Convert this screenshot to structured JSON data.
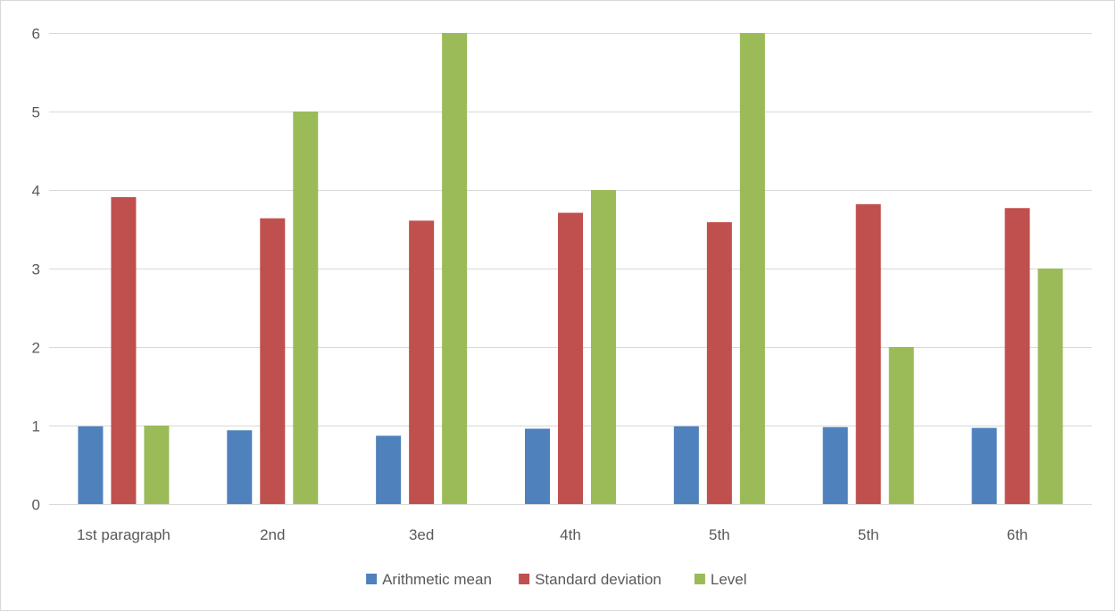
{
  "chart_data": {
    "type": "bar",
    "title": "",
    "xlabel": "",
    "ylabel": "",
    "categories": [
      "1st  paragraph",
      "2nd",
      "3ed",
      "4th",
      "5th",
      "5th",
      "6th"
    ],
    "series": [
      {
        "name": "Arithmetic mean",
        "color": "#4f81bd",
        "values": [
          0.99,
          0.94,
          0.87,
          0.96,
          0.99,
          0.98,
          0.97
        ]
      },
      {
        "name": "Standard deviation",
        "color": "#c0504d",
        "values": [
          3.91,
          3.64,
          3.61,
          3.71,
          3.59,
          3.82,
          3.77
        ]
      },
      {
        "name": "Level",
        "color": "#9bbb59",
        "values": [
          1,
          5,
          6,
          4,
          6,
          2,
          3
        ]
      }
    ],
    "ylim": [
      0,
      6
    ],
    "yticks": [
      0,
      1,
      2,
      3,
      4,
      5,
      6
    ],
    "grid": true,
    "legend_position": "bottom"
  }
}
